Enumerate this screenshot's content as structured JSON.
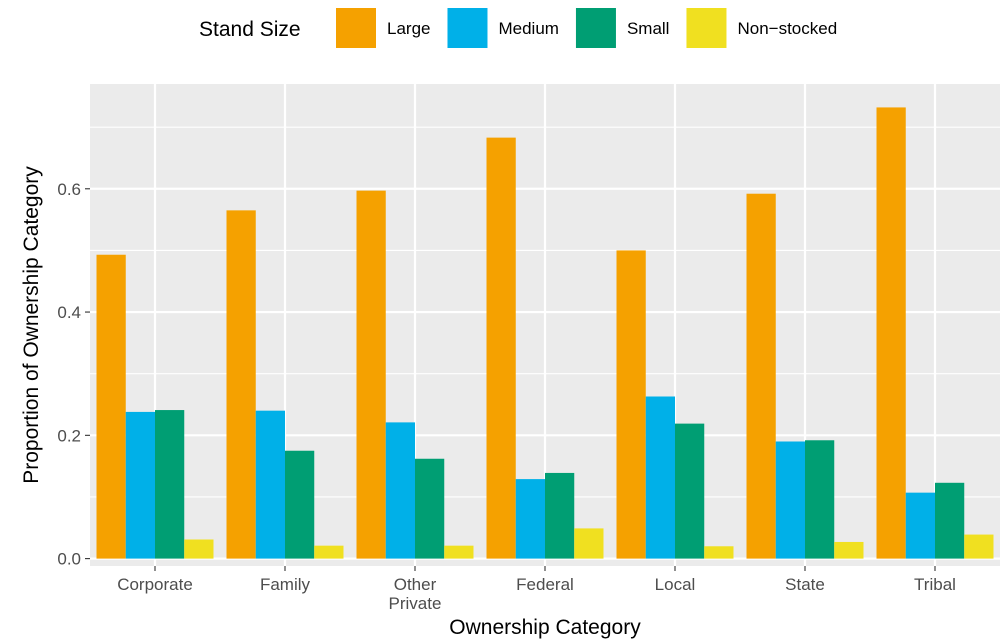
{
  "chart_data": {
    "type": "bar",
    "xlabel": "Ownership Category",
    "ylabel": "Proportion of Ownership Category",
    "legend_title": "Stand Size",
    "legend_position": "top",
    "grid": true,
    "ylim": [
      -0.012,
      0.77
    ],
    "yticks": [
      0.0,
      0.2,
      0.4,
      0.6
    ],
    "ytick_labels": [
      "0.0",
      "0.2",
      "0.4",
      "0.6"
    ],
    "categories": [
      [
        "Corporate"
      ],
      [
        "Family"
      ],
      [
        "Other",
        "Private"
      ],
      [
        "Federal"
      ],
      [
        "Local"
      ],
      [
        "State"
      ],
      [
        "Tribal"
      ]
    ],
    "series": [
      {
        "name": "Large",
        "color": "#F5A100",
        "values": [
          0.493,
          0.565,
          0.597,
          0.683,
          0.5,
          0.592,
          0.732
        ]
      },
      {
        "name": "Medium",
        "color": "#00B0E8",
        "values": [
          0.238,
          0.24,
          0.221,
          0.129,
          0.263,
          0.19,
          0.107
        ]
      },
      {
        "name": "Small",
        "color": "#009E73",
        "values": [
          0.241,
          0.175,
          0.162,
          0.139,
          0.219,
          0.192,
          0.123
        ]
      },
      {
        "name": "Non−stocked",
        "color": "#F0E020",
        "values": [
          0.031,
          0.021,
          0.021,
          0.049,
          0.02,
          0.027,
          0.039
        ]
      }
    ]
  }
}
